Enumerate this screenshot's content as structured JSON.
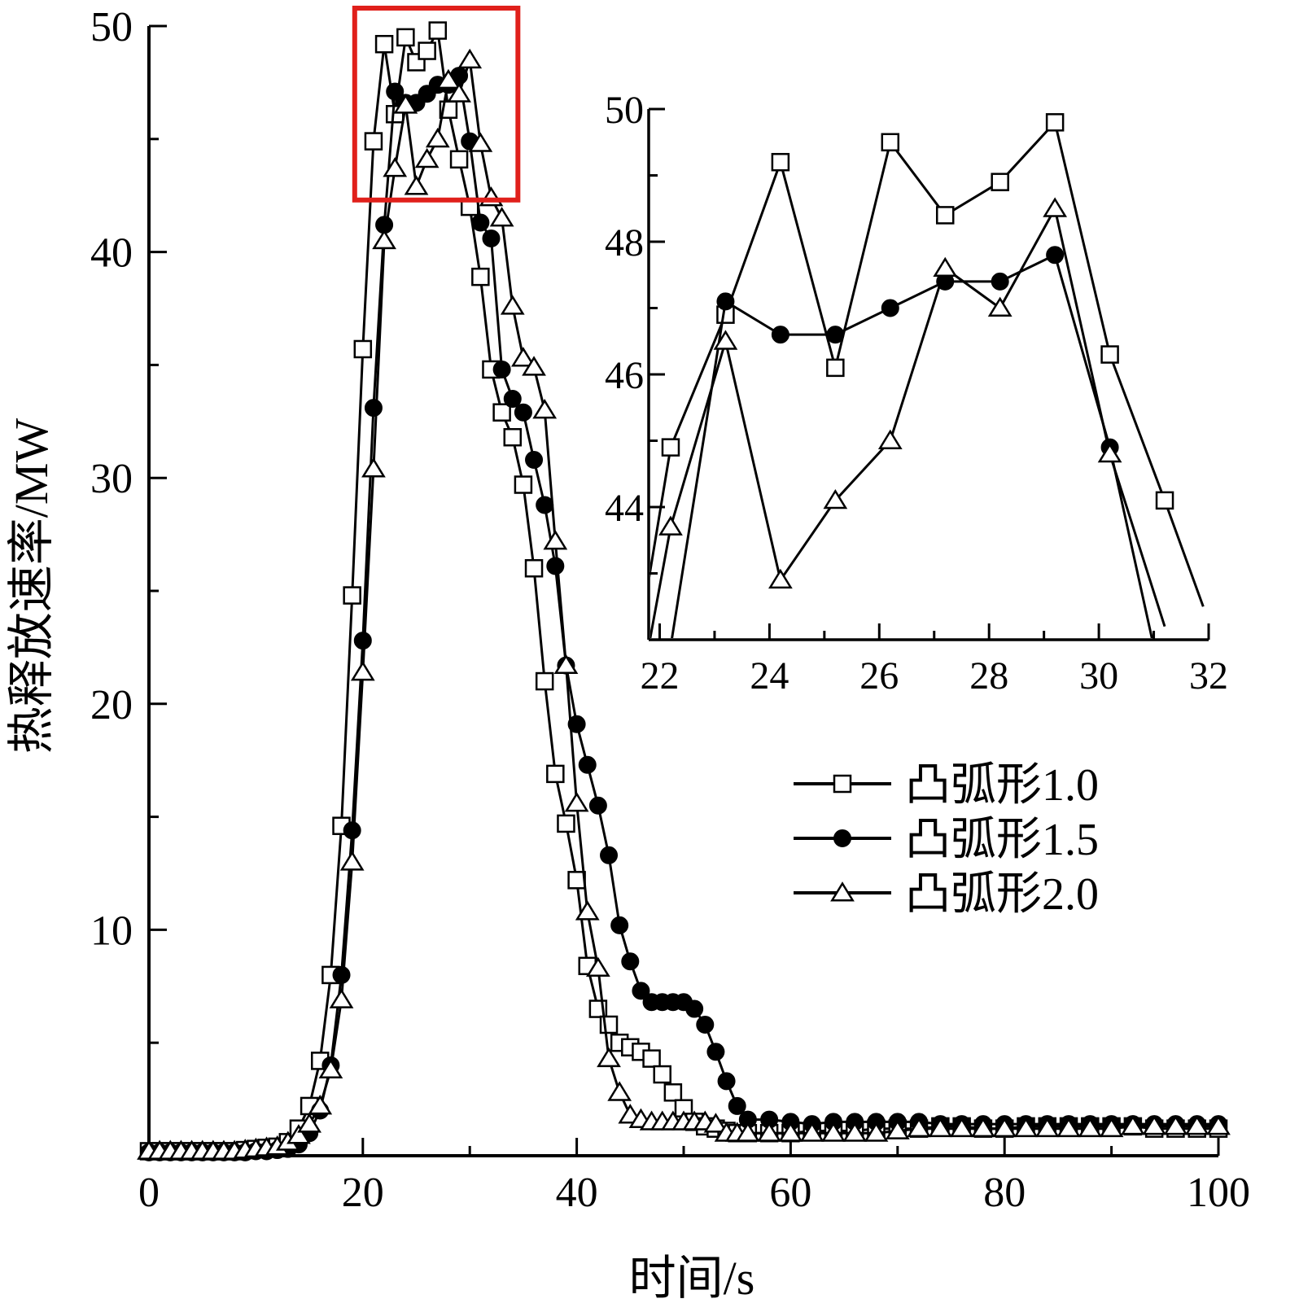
{
  "chart_data": [
    {
      "type": "line",
      "panel": "main",
      "title": "",
      "xlabel": "时间/s",
      "ylabel": "热释放速率/MW",
      "xlim": [
        0,
        100
      ],
      "ylim": [
        0,
        50
      ],
      "xticks": [
        "0",
        "20",
        "40",
        "60",
        "80",
        "100"
      ],
      "yticks": [
        "10",
        "20",
        "30",
        "40",
        "50"
      ],
      "grid": false,
      "legend_position": "center-right",
      "highlight_box": {
        "color": "#e0201b",
        "x_range": [
          20,
          34.5
        ],
        "y_range": [
          42.3,
          50
        ]
      },
      "series": [
        {
          "name": "凸弧形1.0",
          "marker": "square-open",
          "x": [
            0,
            1,
            2,
            3,
            4,
            5,
            6,
            7,
            8,
            9,
            10,
            11,
            12,
            13,
            14,
            15,
            16,
            17,
            18,
            19,
            20,
            21,
            22,
            23,
            24,
            25,
            26,
            27,
            28,
            29,
            30,
            31,
            32,
            33,
            34,
            35,
            36,
            37,
            38,
            39,
            40,
            41,
            42,
            43,
            44,
            45,
            46,
            47,
            48,
            49,
            50,
            51,
            52,
            53,
            54,
            55,
            56,
            58,
            60,
            62,
            64,
            66,
            68,
            70,
            72,
            74,
            76,
            78,
            80,
            82,
            84,
            86,
            88,
            90,
            92,
            94,
            96,
            98,
            100
          ],
          "y": [
            0.2,
            0.2,
            0.2,
            0.2,
            0.2,
            0.2,
            0.2,
            0.2,
            0.2,
            0.25,
            0.3,
            0.35,
            0.4,
            0.6,
            1.2,
            2.2,
            4.2,
            8.0,
            14.6,
            24.8,
            35.7,
            44.9,
            49.2,
            46.1,
            49.5,
            48.4,
            48.9,
            49.8,
            46.3,
            44.1,
            42.0,
            38.9,
            34.8,
            32.9,
            31.8,
            29.7,
            26.0,
            21.0,
            16.9,
            14.7,
            12.2,
            8.4,
            6.5,
            5.8,
            5.0,
            4.8,
            4.6,
            4.3,
            3.6,
            2.8,
            2.1,
            1.5,
            1.3,
            1.2,
            1.1,
            1.0,
            1.0,
            1.0,
            1.0,
            1.1,
            1.1,
            1.1,
            1.2,
            1.2,
            1.2,
            1.3,
            1.3,
            1.2,
            1.2,
            1.3,
            1.3,
            1.3,
            1.3,
            1.3,
            1.3,
            1.2,
            1.2,
            1.2,
            1.2
          ]
        },
        {
          "name": "凸弧形1.5",
          "marker": "circle-filled",
          "x": [
            0,
            1,
            2,
            3,
            4,
            5,
            6,
            7,
            8,
            9,
            10,
            11,
            12,
            13,
            14,
            15,
            16,
            17,
            18,
            19,
            20,
            21,
            22,
            23,
            24,
            25,
            26,
            27,
            28,
            29,
            30,
            31,
            32,
            33,
            34,
            35,
            36,
            37,
            38,
            39,
            40,
            41,
            42,
            43,
            44,
            45,
            46,
            47,
            48,
            49,
            50,
            51,
            52,
            53,
            54,
            55,
            56,
            58,
            60,
            62,
            64,
            66,
            68,
            70,
            72,
            74,
            76,
            78,
            80,
            82,
            84,
            86,
            88,
            90,
            92,
            94,
            96,
            98,
            100
          ],
          "y": [
            0.15,
            0.15,
            0.15,
            0.15,
            0.15,
            0.15,
            0.15,
            0.15,
            0.15,
            0.15,
            0.2,
            0.2,
            0.25,
            0.3,
            0.5,
            1.0,
            2.0,
            4.0,
            8.0,
            14.4,
            22.8,
            33.1,
            41.2,
            47.1,
            46.6,
            46.6,
            47.0,
            47.4,
            47.4,
            47.8,
            44.9,
            41.3,
            40.6,
            34.8,
            33.5,
            32.9,
            30.8,
            28.8,
            26.1,
            21.7,
            19.1,
            17.3,
            15.5,
            13.3,
            10.2,
            8.6,
            7.3,
            6.8,
            6.8,
            6.8,
            6.8,
            6.5,
            5.8,
            4.6,
            3.3,
            2.2,
            1.6,
            1.6,
            1.5,
            1.4,
            1.5,
            1.5,
            1.5,
            1.5,
            1.5,
            1.4,
            1.4,
            1.4,
            1.4,
            1.4,
            1.4,
            1.4,
            1.4,
            1.4,
            1.4,
            1.4,
            1.4,
            1.4,
            1.4
          ]
        },
        {
          "name": "凸弧形2.0",
          "marker": "triangle-open",
          "x": [
            0,
            1,
            2,
            3,
            4,
            5,
            6,
            7,
            8,
            9,
            10,
            11,
            12,
            13,
            14,
            15,
            16,
            17,
            18,
            19,
            20,
            21,
            22,
            23,
            24,
            25,
            26,
            27,
            28,
            29,
            30,
            31,
            32,
            33,
            34,
            35,
            36,
            37,
            38,
            39,
            40,
            41,
            42,
            43,
            44,
            45,
            46,
            47,
            48,
            49,
            50,
            51,
            52,
            53,
            54,
            55,
            56,
            58,
            60,
            62,
            64,
            66,
            68,
            70,
            72,
            74,
            76,
            78,
            80,
            82,
            84,
            86,
            88,
            90,
            92,
            94,
            96,
            98,
            100
          ],
          "y": [
            0.2,
            0.2,
            0.2,
            0.2,
            0.2,
            0.2,
            0.2,
            0.2,
            0.2,
            0.25,
            0.3,
            0.35,
            0.4,
            0.6,
            0.9,
            1.4,
            2.2,
            3.8,
            6.9,
            13.0,
            21.4,
            30.4,
            40.5,
            43.7,
            46.5,
            42.9,
            44.1,
            45.0,
            47.6,
            47.0,
            48.5,
            44.8,
            42.4,
            41.5,
            37.6,
            35.3,
            34.9,
            33.0,
            27.2,
            21.7,
            15.6,
            10.8,
            8.3,
            4.3,
            2.8,
            1.8,
            1.6,
            1.5,
            1.5,
            1.5,
            1.5,
            1.5,
            1.5,
            1.4,
            1.0,
            1.0,
            1.0,
            1.0,
            1.0,
            1.0,
            1.0,
            1.0,
            1.0,
            1.1,
            1.2,
            1.2,
            1.2,
            1.2,
            1.2,
            1.2,
            1.2,
            1.2,
            1.2,
            1.2,
            1.3,
            1.3,
            1.3,
            1.3,
            1.3
          ]
        }
      ]
    },
    {
      "type": "line",
      "panel": "inset",
      "title": "",
      "xlabel": "",
      "ylabel": "",
      "xlim": [
        21.8,
        32
      ],
      "ylim": [
        42,
        50
      ],
      "xticks": [
        "22",
        "24",
        "26",
        "28",
        "30",
        "32"
      ],
      "yticks": [
        "44",
        "46",
        "48",
        "50"
      ],
      "grid": false,
      "series": [
        {
          "name": "凸弧形1.0",
          "marker": "square-open",
          "x": [
            21.6,
            22.2,
            23.2,
            24.2,
            25.2,
            26.2,
            27.2,
            28.2,
            29.2,
            30.2,
            31.2,
            31.9
          ],
          "y": [
            41.9,
            44.9,
            46.9,
            49.2,
            46.1,
            49.5,
            48.4,
            48.9,
            49.8,
            46.3,
            44.1,
            42.5
          ]
        },
        {
          "name": "凸弧形1.5",
          "marker": "circle-filled",
          "x": [
            22.2,
            23.2,
            24.2,
            25.2,
            26.2,
            27.2,
            28.2,
            29.2,
            30.2,
            31.0
          ],
          "y": [
            41.9,
            47.1,
            46.6,
            46.6,
            47.0,
            47.4,
            47.4,
            47.8,
            44.9,
            41.9
          ]
        },
        {
          "name": "凸弧形2.0",
          "marker": "triangle-open",
          "x": [
            21.8,
            22.2,
            23.2,
            24.2,
            25.2,
            26.2,
            27.2,
            28.2,
            29.2,
            30.2,
            31.2
          ],
          "y": [
            41.9,
            43.7,
            46.5,
            42.9,
            44.1,
            45.0,
            47.6,
            47.0,
            48.5,
            44.8,
            42.2
          ]
        }
      ]
    }
  ]
}
